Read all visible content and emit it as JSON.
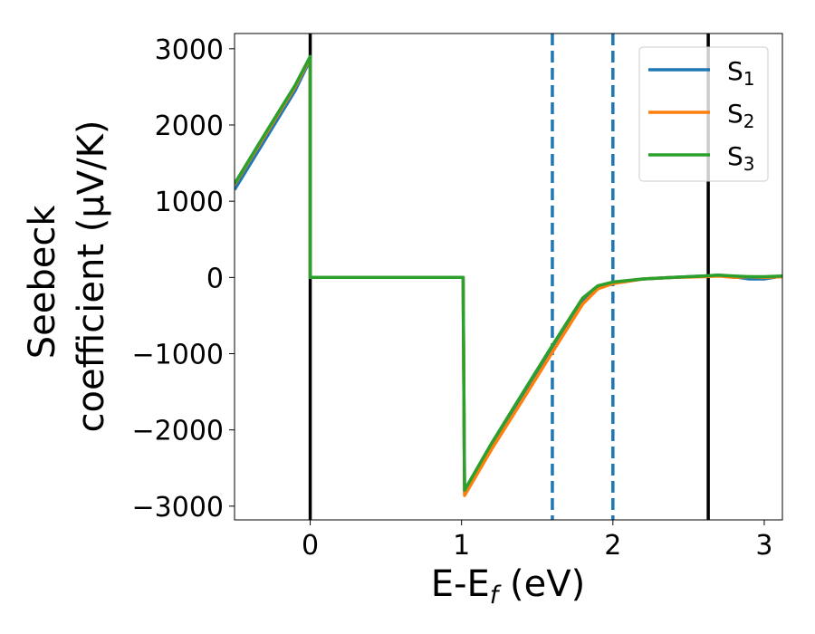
{
  "chart_data": {
    "type": "line",
    "title": "",
    "xlabel": {
      "main": "E-E",
      "sub": "f",
      "tail": " (eV)"
    },
    "ylabel": {
      "line1": "Seebeck",
      "line2": "coefficient  (μV/K)"
    },
    "xlim": [
      -0.5,
      3.12
    ],
    "ylim": [
      -3180,
      3200
    ],
    "xticks": [
      0,
      1,
      2,
      3
    ],
    "yticks": [
      -3000,
      -2000,
      -1000,
      0,
      1000,
      2000,
      3000
    ],
    "ytick_labels": [
      "−3000",
      "−2000",
      "−1000",
      "0",
      "1000",
      "2000",
      "3000"
    ],
    "grid": false,
    "legend_position": "top-right",
    "vlines": [
      {
        "x": 0.0,
        "style": "solid",
        "color": "#000000"
      },
      {
        "x": 1.6,
        "style": "dashed",
        "color": "#1f77b4"
      },
      {
        "x": 2.0,
        "style": "dashed",
        "color": "#1f77b4"
      },
      {
        "x": 2.63,
        "style": "solid",
        "color": "#000000"
      }
    ],
    "series": [
      {
        "name": "S",
        "sub": "1",
        "color": "#1f77b4",
        "x": [
          -0.5,
          -0.3,
          -0.1,
          0.0,
          0.0,
          0.5,
          1.01,
          1.02,
          1.2,
          1.4,
          1.6,
          1.8,
          1.9,
          2.0,
          2.2,
          2.4,
          2.6,
          2.7,
          2.8,
          2.9,
          3.0,
          3.12
        ],
        "y": [
          1150,
          1800,
          2450,
          2860,
          0,
          0,
          0,
          -2800,
          -2180,
          -1550,
          -920,
          -300,
          -120,
          -70,
          -20,
          0,
          20,
          30,
          10,
          -20,
          -20,
          20
        ]
      },
      {
        "name": "S",
        "sub": "2",
        "color": "#ff7f0e",
        "x": [
          -0.5,
          -0.3,
          -0.1,
          0.0,
          0.0,
          0.5,
          1.01,
          1.02,
          1.2,
          1.4,
          1.6,
          1.8,
          1.9,
          2.0,
          2.2,
          2.4,
          2.6,
          2.7,
          2.8,
          2.9,
          3.0,
          3.12
        ],
        "y": [
          1220,
          1860,
          2500,
          2880,
          0,
          0,
          0,
          -2860,
          -2250,
          -1620,
          -980,
          -350,
          -150,
          -80,
          -20,
          0,
          10,
          20,
          0,
          10,
          0,
          10
        ]
      },
      {
        "name": "S",
        "sub": "3",
        "color": "#2ca02c",
        "x": [
          -0.5,
          -0.3,
          -0.1,
          0.0,
          0.0,
          0.5,
          1.01,
          1.02,
          1.2,
          1.4,
          1.6,
          1.8,
          1.9,
          2.0,
          2.2,
          2.4,
          2.6,
          2.7,
          2.8,
          2.9,
          3.0,
          3.12
        ],
        "y": [
          1230,
          1880,
          2520,
          2900,
          0,
          0,
          0,
          -2790,
          -2170,
          -1530,
          -890,
          -270,
          -110,
          -60,
          -20,
          0,
          20,
          30,
          20,
          10,
          10,
          20
        ]
      }
    ]
  }
}
